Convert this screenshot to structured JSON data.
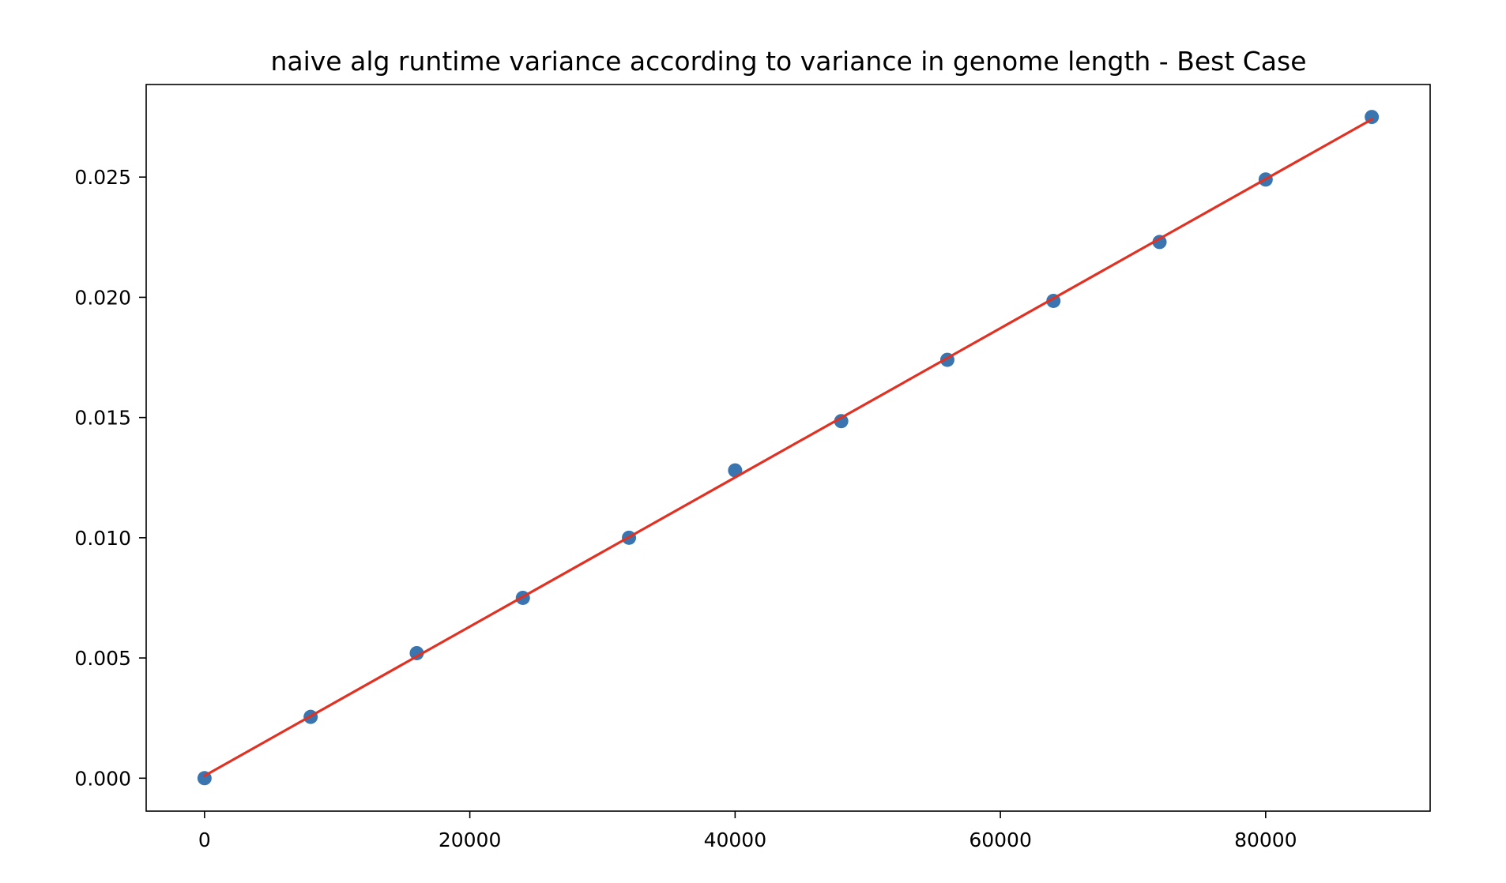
{
  "chart_data": {
    "type": "scatter",
    "title": "naive alg runtime variance according to variance in genome length - Best Case",
    "xlabel": "",
    "ylabel": "",
    "xlim": [
      -4400,
      92400
    ],
    "ylim": [
      -0.00137,
      0.02885
    ],
    "x_ticks": [
      0,
      20000,
      40000,
      60000,
      80000
    ],
    "y_ticks": [
      0.0,
      0.005,
      0.01,
      0.015,
      0.02,
      0.025
    ],
    "x_tick_labels": [
      "0",
      "20000",
      "40000",
      "60000",
      "80000"
    ],
    "y_tick_labels": [
      "0.000",
      "0.005",
      "0.010",
      "0.015",
      "0.020",
      "0.025"
    ],
    "grid": false,
    "legend": "none",
    "series": [
      {
        "kind": "scatter",
        "color": "#3a75b0",
        "x": [
          0,
          8000,
          16000,
          24000,
          32000,
          40000,
          48000,
          56000,
          64000,
          72000,
          80000,
          88000
        ],
        "y": [
          0.0,
          0.00255,
          0.0052,
          0.0075,
          0.01,
          0.0128,
          0.01485,
          0.0174,
          0.01985,
          0.0223,
          0.0249,
          0.0275
        ]
      },
      {
        "kind": "line",
        "color": "#e03123",
        "x": [
          0,
          88000
        ],
        "y": [
          0.0001,
          0.0274
        ]
      }
    ]
  }
}
